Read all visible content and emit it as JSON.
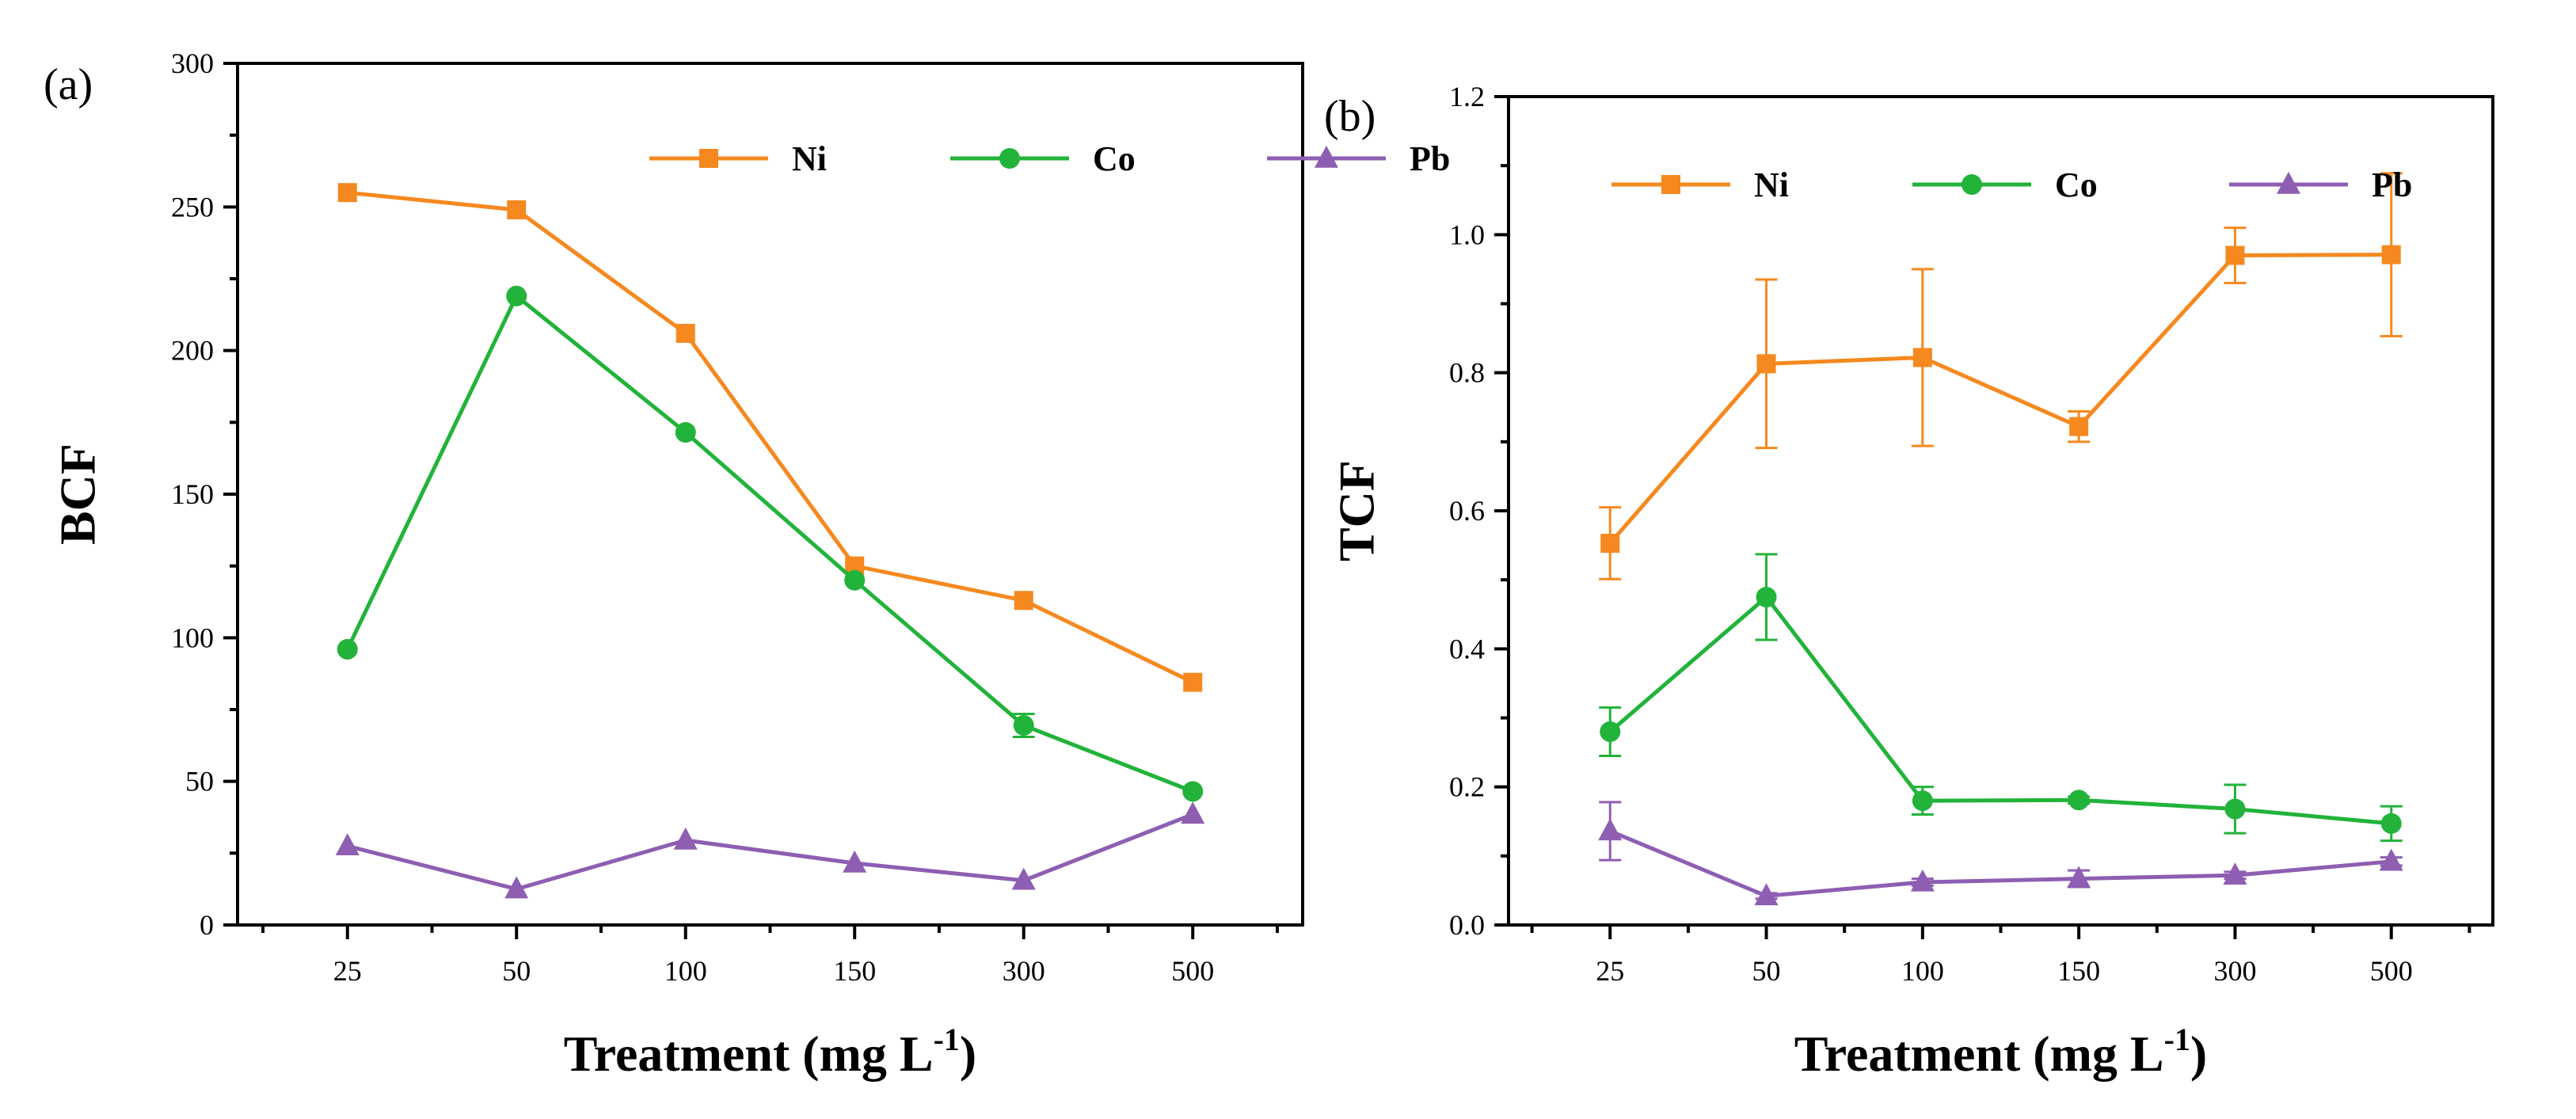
{
  "chart_data": [
    {
      "panel_label": "(a)",
      "type": "line",
      "xlabel": "Treatment (mg L",
      "xlabel_sup": "-1",
      "xlabel_close": ")",
      "ylabel": "BCF",
      "categories": [
        "25",
        "50",
        "100",
        "150",
        "300",
        "500"
      ],
      "ylim": [
        0,
        300
      ],
      "yticks": [
        "0",
        "50",
        "100",
        "150",
        "200",
        "250",
        "300"
      ],
      "ytick_values": [
        0,
        50,
        100,
        150,
        200,
        250,
        300
      ],
      "legend_position": "top-right",
      "series": [
        {
          "name": "Ni",
          "color": "#F5891F",
          "marker": "square",
          "values": [
            255,
            249,
            206,
            125,
            113,
            84.5
          ],
          "errors": [
            0,
            0,
            0,
            0,
            0,
            0
          ]
        },
        {
          "name": "Co",
          "color": "#22B33A",
          "marker": "circle",
          "values": [
            96,
            219,
            171.5,
            120,
            69.5,
            46.5
          ],
          "errors": [
            0,
            0,
            0,
            0,
            4,
            0
          ]
        },
        {
          "name": "Pb",
          "color": "#8E5EB2",
          "marker": "triangle",
          "values": [
            27.5,
            12.5,
            29.5,
            21.5,
            15.5,
            38.5
          ],
          "errors": [
            0,
            0,
            0,
            0,
            0,
            0
          ]
        }
      ]
    },
    {
      "panel_label": "(b)",
      "type": "line",
      "xlabel": "Treatment (mg L",
      "xlabel_sup": "-1",
      "xlabel_close": ")",
      "ylabel": "TCF",
      "categories": [
        "25",
        "50",
        "100",
        "150",
        "300",
        "500"
      ],
      "ylim": [
        0,
        1.2
      ],
      "yticks": [
        "0.0",
        "0.2",
        "0.4",
        "0.6",
        "0.8",
        "1.0",
        "1.2"
      ],
      "ytick_values": [
        0,
        0.2,
        0.4,
        0.6,
        0.8,
        1.0,
        1.2
      ],
      "legend_position": "top-left",
      "series": [
        {
          "name": "Ni",
          "color": "#F5891F",
          "marker": "square",
          "values": [
            0.553,
            0.813,
            0.822,
            0.722,
            0.97,
            0.971
          ],
          "errors": [
            0.052,
            0.122,
            0.128,
            0.022,
            0.04,
            0.118
          ]
        },
        {
          "name": "Co",
          "color": "#22B33A",
          "marker": "circle",
          "values": [
            0.28,
            0.475,
            0.18,
            0.181,
            0.168,
            0.147
          ],
          "errors": [
            0.035,
            0.062,
            0.02,
            0.005,
            0.035,
            0.025
          ]
        },
        {
          "name": "Pb",
          "color": "#8E5EB2",
          "marker": "triangle",
          "values": [
            0.136,
            0.042,
            0.062,
            0.067,
            0.072,
            0.092
          ],
          "errors": [
            0.042,
            0.004,
            0.005,
            0.012,
            0.005,
            0.006
          ]
        }
      ]
    }
  ]
}
